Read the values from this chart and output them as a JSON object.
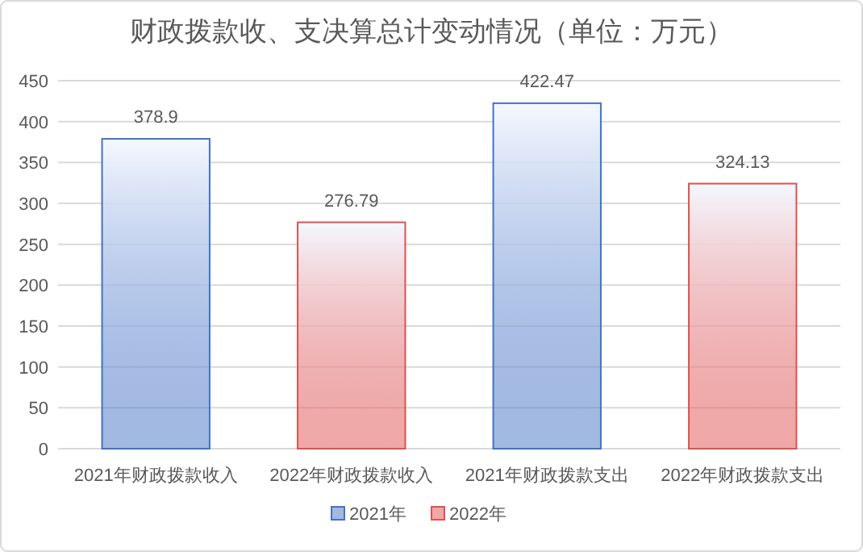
{
  "chart_data": {
    "type": "bar",
    "title": "财政拨款收、支决算总计变动情况（单位：万元）",
    "categories": [
      "2021年财政拨款收入",
      "2022年财政拨款收入",
      "2021年财政拨款支出",
      "2022年财政拨款支出"
    ],
    "series": [
      {
        "name": "2021年",
        "color": "#4472c4",
        "values": [
          378.9,
          null,
          422.47,
          null
        ]
      },
      {
        "name": "2022年",
        "color": "#e0504f",
        "values": [
          null,
          276.79,
          null,
          324.13
        ]
      }
    ],
    "ylim": [
      0,
      450
    ],
    "yticks": [
      0,
      50,
      100,
      150,
      200,
      250,
      300,
      350,
      400,
      450
    ],
    "grid": "y",
    "legend": "bottom",
    "data_labels": true
  }
}
